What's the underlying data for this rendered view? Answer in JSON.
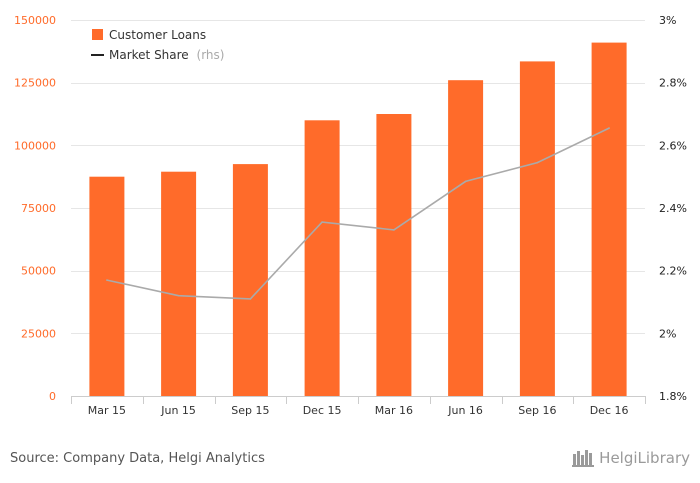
{
  "chart_data": {
    "type": "bar",
    "categories": [
      "Mar 15",
      "Jun 15",
      "Sep 15",
      "Dec 15",
      "Mar 16",
      "Jun 16",
      "Sep 16",
      "Dec 16"
    ],
    "series": [
      {
        "name": "Customer Loans",
        "kind": "bar",
        "axis": "left",
        "color": "#ff6b2a",
        "values": [
          87500,
          89500,
          92500,
          110000,
          112500,
          126000,
          133500,
          141000
        ]
      },
      {
        "name": "Market Share",
        "legend_suffix": "(rhs)",
        "kind": "line",
        "axis": "right",
        "color": "#aaaaaa",
        "values": [
          2.17,
          2.12,
          2.11,
          2.355,
          2.33,
          2.485,
          2.545,
          2.655
        ]
      }
    ],
    "y_left": {
      "min": 0,
      "max": 150000,
      "ticks": [
        "0",
        "25000",
        "50000",
        "75000",
        "100000",
        "125000",
        "150000"
      ],
      "tick_values": [
        0,
        25000,
        50000,
        75000,
        100000,
        125000,
        150000
      ]
    },
    "y_right": {
      "min": 1.8,
      "max": 3.0,
      "ticks": [
        "1.8%",
        "2%",
        "2.2%",
        "2.4%",
        "2.6%",
        "2.8%",
        "3%"
      ],
      "tick_values": [
        1.8,
        2.0,
        2.2,
        2.4,
        2.6,
        2.8,
        3.0
      ]
    },
    "grid": true,
    "legend_position": "top-left"
  },
  "footer": {
    "source": "Source: Company Data, Helgi Analytics",
    "brand_name": "HelgiLibrary"
  },
  "colors": {
    "bar": "#ff6b2a",
    "line": "#aaaaaa",
    "grid": "#e6e6e6",
    "left_tick": "#ff6b2a",
    "right_tick": "#222222",
    "legend_line": "#222222"
  }
}
